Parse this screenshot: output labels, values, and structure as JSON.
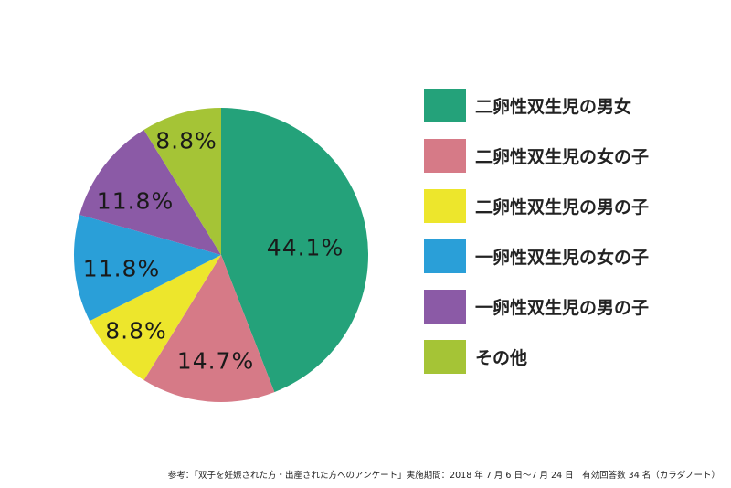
{
  "chart_data": {
    "type": "pie",
    "title": "",
    "start_angle_deg": 0,
    "direction": "clockwise",
    "slices": [
      {
        "label": "二卵性双生児の男女",
        "value": 44.1,
        "display": "44.1%",
        "color": "#24a27a"
      },
      {
        "label": "二卵性双生児の女の子",
        "value": 14.7,
        "display": "14.7%",
        "color": "#d67a87"
      },
      {
        "label": "二卵性双生児の男の子",
        "value": 8.8,
        "display": "8.8%",
        "color": "#ede62c"
      },
      {
        "label": "一卵性双生児の女の子",
        "value": 11.8,
        "display": "11.8%",
        "color": "#2a9fd8"
      },
      {
        "label": "一卵性双生児の男の子",
        "value": 11.8,
        "display": "11.8%",
        "color": "#8b5aa6"
      },
      {
        "label": "その他",
        "value": 8.8,
        "display": "8.8%",
        "color": "#a5c436"
      }
    ],
    "legend_position": "right",
    "n_respondents": 34
  },
  "labels": [
    "44.1%",
    "14.7%",
    "8.8%",
    "11.8%",
    "11.8%",
    "8.8%"
  ],
  "legend": [
    {
      "label": "二卵性双生児の男女",
      "color": "#24a27a"
    },
    {
      "label": "二卵性双生児の女の子",
      "color": "#d67a87"
    },
    {
      "label": "二卵性双生児の男の子",
      "color": "#ede62c"
    },
    {
      "label": "一卵性双生児の女の子",
      "color": "#2a9fd8"
    },
    {
      "label": "一卵性双生児の男の子",
      "color": "#8b5aa6"
    },
    {
      "label": "その他",
      "color": "#a5c436"
    }
  ],
  "footnote": "参考：「双子を妊娠された方・出産された方へのアンケート」実施期間：2018 年 7 月 6 日〜7 月 24 日　有効回答数 34 名（カラダノート）"
}
